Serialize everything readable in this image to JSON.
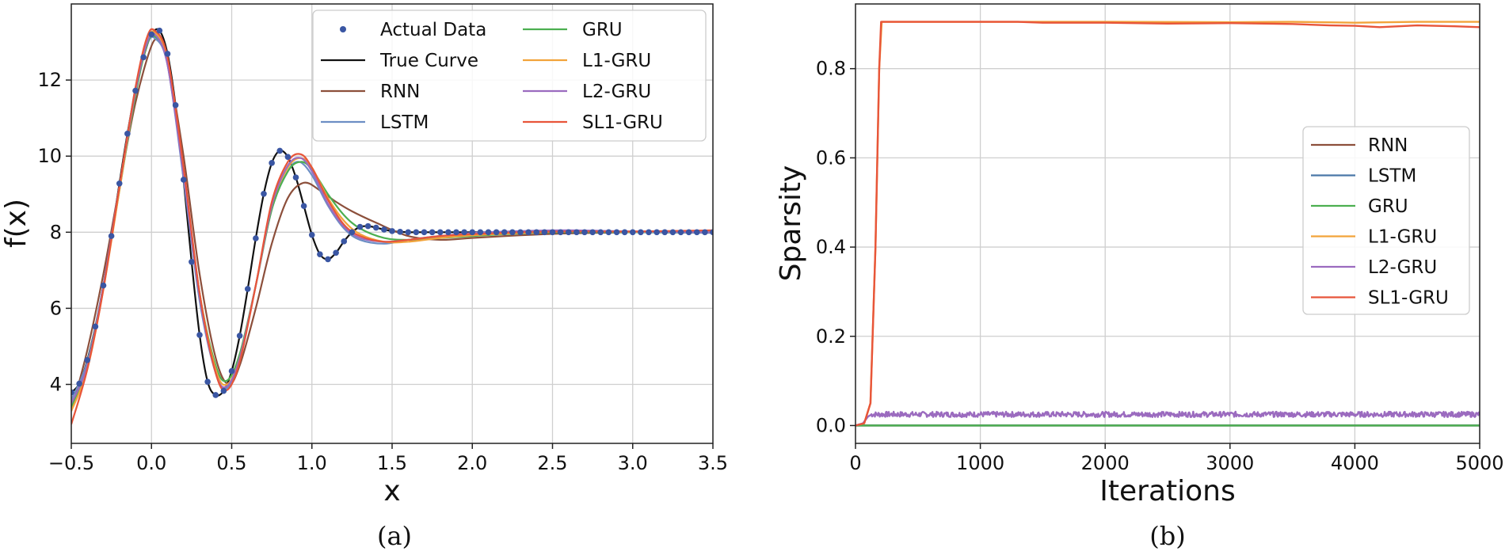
{
  "chart_data": [
    {
      "type": "line",
      "panel": "(a)",
      "xlabel": "x",
      "ylabel": "f(x)",
      "xlim": [
        -0.5,
        3.5
      ],
      "ylim": [
        2.45,
        14.0
      ],
      "xticks": [
        -0.5,
        0.0,
        0.5,
        1.0,
        1.5,
        2.0,
        2.5,
        3.0,
        3.5
      ],
      "xtick_labels": [
        "−0.5",
        "0.0",
        "0.5",
        "1.0",
        "1.5",
        "2.0",
        "2.5",
        "3.0",
        "3.5"
      ],
      "yticks": [
        4,
        6,
        8,
        10,
        12
      ],
      "ytick_labels": [
        "4",
        "6",
        "8",
        "10",
        "12"
      ],
      "grid": true,
      "legend_position": "top-right",
      "legend_columns": 2,
      "scatter": {
        "name": "Actual Data",
        "color": "#3a56a3",
        "x": [
          -0.5,
          -0.45,
          -0.4,
          -0.35,
          -0.3,
          -0.25,
          -0.2,
          -0.15,
          -0.1,
          -0.05,
          0.0,
          0.05,
          0.1,
          0.15,
          0.2,
          0.25,
          0.3,
          0.35,
          0.4,
          0.45,
          0.5,
          0.55,
          0.6,
          0.65,
          0.7,
          0.75,
          0.8,
          0.85,
          0.9,
          0.95,
          1.0,
          1.05,
          1.1,
          1.15,
          1.2,
          1.25,
          1.3,
          1.35,
          1.4,
          1.45,
          1.5,
          1.55,
          1.6,
          1.65,
          1.7,
          1.75,
          1.8,
          1.85,
          1.9,
          1.95,
          2.0,
          2.05,
          2.1,
          2.15,
          2.2,
          2.25,
          2.3,
          2.35,
          2.4,
          2.45,
          2.5,
          2.55,
          2.6,
          2.65,
          2.7,
          2.75,
          2.8,
          2.85,
          2.9,
          2.95,
          3.0,
          3.05,
          3.1,
          3.15,
          3.2,
          3.25,
          3.3,
          3.35,
          3.4,
          3.45,
          3.5
        ],
        "y": [
          3.79,
          4.02,
          4.64,
          5.52,
          6.6,
          7.9,
          9.28,
          10.59,
          11.72,
          12.6,
          13.2,
          13.3,
          12.69,
          11.34,
          9.38,
          7.22,
          5.3,
          4.07,
          3.72,
          3.83,
          4.35,
          5.28,
          6.51,
          7.84,
          9.01,
          9.82,
          10.14,
          9.98,
          9.44,
          8.69,
          7.93,
          7.42,
          7.29,
          7.46,
          7.76,
          8.0,
          8.14,
          8.16,
          8.12,
          8.07,
          8.03,
          8.01,
          8.0,
          8.0,
          8.0,
          8.0,
          8.0,
          8.0,
          8.0,
          8.0,
          8.0,
          8.0,
          8.0,
          8.0,
          8.0,
          8.0,
          8.0,
          8.0,
          8.0,
          8.0,
          8.0,
          8.0,
          8.0,
          8.0,
          8.0,
          8.0,
          8.0,
          8.0,
          8.0,
          8.0,
          8.0,
          8.0,
          8.0,
          8.0,
          8.0,
          8.0,
          8.0,
          8.0,
          8.0,
          8.0,
          8.0
        ]
      },
      "series": [
        {
          "name": "True Curve",
          "color": "#111111",
          "x": [
            -0.5,
            -0.45,
            -0.4,
            -0.35,
            -0.3,
            -0.25,
            -0.2,
            -0.15,
            -0.1,
            -0.05,
            0.0,
            0.05,
            0.1,
            0.15,
            0.2,
            0.25,
            0.3,
            0.35,
            0.4,
            0.45,
            0.5,
            0.55,
            0.6,
            0.65,
            0.7,
            0.75,
            0.8,
            0.85,
            0.9,
            0.95,
            1.0,
            1.05,
            1.1,
            1.15,
            1.2,
            1.25,
            1.3,
            1.35,
            1.4,
            1.45,
            1.5,
            1.55,
            1.6,
            1.65,
            1.7,
            1.75,
            1.8,
            1.85,
            1.9,
            1.95,
            2.0,
            2.2,
            2.5,
            3.0,
            3.5
          ],
          "y": [
            3.79,
            4.02,
            4.64,
            5.52,
            6.6,
            7.9,
            9.28,
            10.59,
            11.72,
            12.6,
            13.2,
            13.3,
            12.69,
            11.34,
            9.38,
            7.22,
            5.3,
            4.07,
            3.72,
            3.83,
            4.35,
            5.28,
            6.51,
            7.84,
            9.01,
            9.82,
            10.14,
            9.98,
            9.44,
            8.69,
            7.93,
            7.42,
            7.29,
            7.46,
            7.76,
            8.0,
            8.14,
            8.16,
            8.12,
            8.07,
            8.03,
            8.01,
            8.0,
            8.0,
            8.0,
            8.0,
            8.0,
            8.0,
            8.0,
            8.0,
            8.0,
            8.0,
            8.0,
            8.0,
            8.0
          ]
        },
        {
          "name": "RNN",
          "color": "#8c4f3b",
          "x": [
            -0.5,
            -0.4,
            -0.3,
            -0.2,
            -0.1,
            0.0,
            0.05,
            0.1,
            0.2,
            0.3,
            0.4,
            0.48,
            0.55,
            0.65,
            0.75,
            0.85,
            0.95,
            1.05,
            1.15,
            1.25,
            1.4,
            1.6,
            1.8,
            2.0,
            2.3,
            2.6,
            3.0,
            3.5
          ],
          "y": [
            3.3,
            4.9,
            6.9,
            9.2,
            11.4,
            12.9,
            13.0,
            12.5,
            10.0,
            6.9,
            4.7,
            4.0,
            4.5,
            6.0,
            7.7,
            8.9,
            9.3,
            9.1,
            8.8,
            8.55,
            8.25,
            7.9,
            7.8,
            7.85,
            7.92,
            7.97,
            8.0,
            8.02
          ]
        },
        {
          "name": "LSTM",
          "color": "#6c8ec4",
          "x": [
            -0.5,
            -0.4,
            -0.3,
            -0.2,
            -0.1,
            -0.03,
            0.02,
            0.1,
            0.2,
            0.3,
            0.4,
            0.47,
            0.55,
            0.65,
            0.75,
            0.85,
            0.92,
            1.0,
            1.1,
            1.2,
            1.3,
            1.45,
            1.6,
            1.8,
            2.0,
            2.3,
            2.6,
            3.0,
            3.5
          ],
          "y": [
            3.6,
            4.6,
            6.6,
            9.2,
            11.8,
            12.9,
            13.1,
            12.4,
            9.4,
            6.2,
            4.3,
            3.9,
            4.7,
            6.6,
            8.6,
            9.6,
            9.85,
            9.5,
            8.7,
            8.1,
            7.8,
            7.7,
            7.8,
            7.9,
            7.95,
            8.0,
            8.03,
            8.0,
            7.98
          ]
        },
        {
          "name": "GRU",
          "color": "#4caf50",
          "x": [
            -0.5,
            -0.4,
            -0.3,
            -0.2,
            -0.1,
            -0.03,
            0.02,
            0.1,
            0.2,
            0.3,
            0.4,
            0.47,
            0.55,
            0.65,
            0.75,
            0.85,
            0.93,
            1.0,
            1.1,
            1.2,
            1.3,
            1.45,
            1.6,
            1.8,
            2.0,
            2.3,
            2.6,
            3.0,
            3.5
          ],
          "y": [
            3.4,
            4.5,
            6.6,
            9.1,
            11.6,
            12.9,
            13.15,
            12.5,
            9.6,
            6.4,
            4.5,
            4.1,
            4.8,
            6.6,
            8.6,
            9.6,
            9.85,
            9.65,
            9.0,
            8.45,
            8.1,
            7.85,
            7.8,
            7.85,
            7.9,
            7.97,
            8.0,
            8.0,
            8.0
          ]
        },
        {
          "name": "L1-GRU",
          "color": "#f2a33a",
          "x": [
            -0.5,
            -0.4,
            -0.3,
            -0.2,
            -0.1,
            -0.03,
            0.02,
            0.1,
            0.2,
            0.3,
            0.4,
            0.47,
            0.55,
            0.65,
            0.75,
            0.85,
            0.93,
            1.0,
            1.1,
            1.2,
            1.3,
            1.45,
            1.6,
            1.8,
            2.0,
            2.3,
            2.6,
            3.0,
            3.5
          ],
          "y": [
            3.3,
            4.4,
            6.5,
            9.1,
            11.7,
            13.0,
            13.25,
            12.5,
            9.6,
            6.4,
            4.4,
            4.0,
            4.7,
            6.6,
            8.7,
            9.7,
            9.95,
            9.7,
            8.9,
            8.3,
            7.95,
            7.75,
            7.75,
            7.85,
            7.92,
            7.98,
            8.02,
            8.01,
            8.0
          ]
        },
        {
          "name": "L2-GRU",
          "color": "#9b6bbf",
          "x": [
            -0.5,
            -0.4,
            -0.3,
            -0.2,
            -0.1,
            -0.03,
            0.02,
            0.1,
            0.2,
            0.3,
            0.4,
            0.47,
            0.55,
            0.65,
            0.75,
            0.85,
            0.93,
            1.0,
            1.1,
            1.2,
            1.3,
            1.45,
            1.6,
            1.8,
            2.0,
            2.3,
            2.6,
            3.0,
            3.5
          ],
          "y": [
            3.5,
            4.5,
            6.6,
            9.2,
            11.7,
            12.95,
            13.2,
            12.4,
            9.5,
            6.3,
            4.3,
            3.95,
            4.7,
            6.6,
            8.7,
            9.75,
            9.95,
            9.6,
            8.75,
            8.15,
            7.85,
            7.75,
            7.8,
            7.9,
            7.98,
            8.03,
            8.05,
            8.02,
            8.0
          ]
        },
        {
          "name": "SL1-GRU",
          "color": "#e8553a",
          "x": [
            -0.5,
            -0.4,
            -0.3,
            -0.2,
            -0.1,
            -0.03,
            0.02,
            0.1,
            0.2,
            0.3,
            0.4,
            0.47,
            0.55,
            0.65,
            0.75,
            0.85,
            0.93,
            1.0,
            1.1,
            1.2,
            1.3,
            1.45,
            1.6,
            1.8,
            2.0,
            2.3,
            2.6,
            3.0,
            3.5
          ],
          "y": [
            2.95,
            4.4,
            6.5,
            9.2,
            11.8,
            13.1,
            13.3,
            12.6,
            9.7,
            6.4,
            4.3,
            3.85,
            4.6,
            6.6,
            8.8,
            9.85,
            10.05,
            9.7,
            8.85,
            8.2,
            7.9,
            7.75,
            7.8,
            7.9,
            7.95,
            8.0,
            8.02,
            8.02,
            8.05
          ]
        }
      ]
    },
    {
      "type": "line",
      "panel": "(b)",
      "xlabel": "Iterations",
      "ylabel": "Sparsity",
      "xlim": [
        0,
        5000
      ],
      "ylim": [
        -0.04,
        0.945
      ],
      "xticks": [
        0,
        1000,
        2000,
        3000,
        4000,
        5000
      ],
      "xtick_labels": [
        "0",
        "1000",
        "2000",
        "3000",
        "4000",
        "5000"
      ],
      "yticks": [
        0.0,
        0.2,
        0.4,
        0.6,
        0.8
      ],
      "ytick_labels": [
        "0.0",
        "0.2",
        "0.4",
        "0.6",
        "0.8"
      ],
      "grid": true,
      "legend_position": "center-right",
      "series": [
        {
          "name": "RNN",
          "color": "#8c4f3b",
          "x": [
            0,
            5000
          ],
          "y": [
            0.0,
            0.0
          ]
        },
        {
          "name": "LSTM",
          "color": "#4a78a8",
          "x": [
            0,
            5000
          ],
          "y": [
            0.0,
            0.0
          ]
        },
        {
          "name": "GRU",
          "color": "#4caf50",
          "x": [
            0,
            5000
          ],
          "y": [
            0.0,
            0.0
          ]
        },
        {
          "name": "L1-GRU",
          "color": "#f2a33a",
          "x": [
            0,
            70,
            120,
            160,
            190,
            210,
            1000,
            2000,
            3000,
            3500,
            4000,
            4500,
            5000
          ],
          "y": [
            0.0,
            0.005,
            0.05,
            0.4,
            0.8,
            0.905,
            0.905,
            0.905,
            0.904,
            0.905,
            0.903,
            0.905,
            0.905
          ]
        },
        {
          "name": "L2-GRU",
          "color": "#9b6bbf",
          "x": [
            0,
            60,
            100,
            130,
            5000
          ],
          "y": [
            0.0,
            0.005,
            0.02,
            0.025,
            0.025
          ],
          "noise": 0.006
        },
        {
          "name": "SL1-GRU",
          "color": "#e8553a",
          "x": [
            0,
            70,
            120,
            160,
            190,
            205,
            1000,
            1300,
            1500,
            2000,
            2500,
            3000,
            3500,
            3800,
            4000,
            4200,
            4500,
            4800,
            5000
          ],
          "y": [
            0.0,
            0.005,
            0.05,
            0.4,
            0.8,
            0.905,
            0.905,
            0.905,
            0.903,
            0.903,
            0.901,
            0.902,
            0.9,
            0.897,
            0.896,
            0.893,
            0.897,
            0.895,
            0.893
          ]
        }
      ]
    }
  ],
  "captions": {
    "a": "(a)",
    "b": "(b)"
  }
}
